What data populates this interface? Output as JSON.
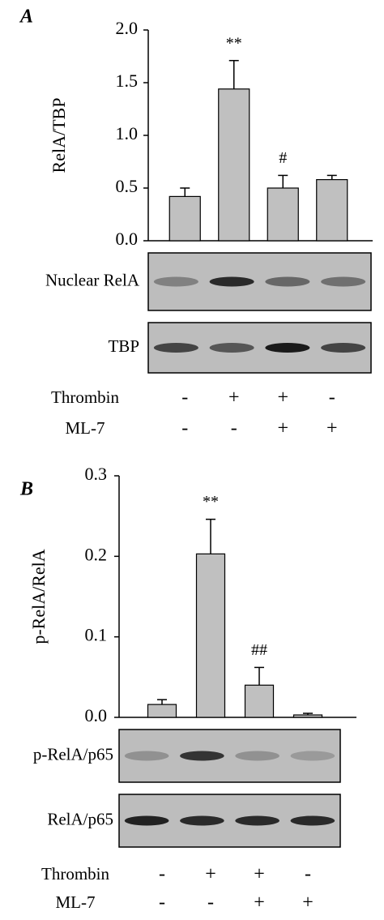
{
  "chart_data": [
    {
      "type": "bar",
      "panel_label": "A",
      "ylabel": "RelA/TBP",
      "color": "#c0c0c0",
      "values": [
        0.42,
        1.44,
        0.5,
        0.58
      ],
      "errors": [
        0.08,
        0.27,
        0.12,
        0.04
      ],
      "annotations": [
        null,
        "**",
        "#",
        null
      ],
      "ylim": [
        0,
        2
      ],
      "yticks": [
        {
          "value": 0,
          "label": "0.0"
        },
        0.5,
        {
          "value": 1,
          "label": "1.0"
        },
        1.5,
        {
          "value": 2,
          "label": "2.0"
        }
      ],
      "blots": [
        "Nuclear RelA",
        "TBP"
      ],
      "treatments": [
        {
          "name": "Thrombin",
          "signs": [
            "-",
            "+",
            "+",
            "-"
          ]
        },
        {
          "name": "ML-7",
          "signs": [
            "-",
            "-",
            "+",
            "+"
          ]
        }
      ]
    },
    {
      "type": "bar",
      "panel_label": "B",
      "ylabel": "p-RelA/RelA",
      "color": "#c0c0c0",
      "values": [
        0.016,
        0.203,
        0.04,
        0.003
      ],
      "errors": [
        0.006,
        0.043,
        0.022,
        0.002
      ],
      "annotations": [
        null,
        "**",
        "##",
        null
      ],
      "ylim": [
        0,
        0.3
      ],
      "yticks": [
        {
          "value": 0,
          "label": "0.0"
        },
        0.1,
        0.2,
        0.3
      ],
      "blots": [
        "p-RelA/p65",
        "RelA/p65"
      ],
      "treatments": [
        {
          "name": "Thrombin",
          "signs": [
            "-",
            "+",
            "+",
            "-"
          ]
        },
        {
          "name": "ML-7",
          "signs": [
            "-",
            "-",
            "+",
            "+"
          ]
        }
      ]
    }
  ]
}
